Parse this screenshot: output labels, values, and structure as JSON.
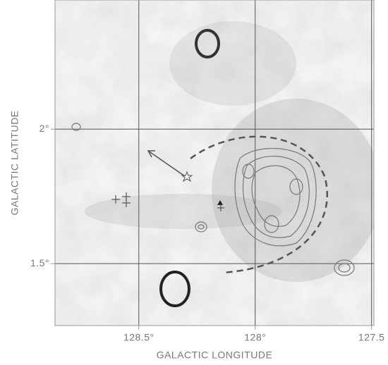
{
  "chart_data": {
    "type": "image",
    "x_label": "GALACTIC LONGITUDE",
    "y_label": "GALACTIC LATITUDE",
    "xlim": [
      128.86,
      127.49
    ],
    "ylim": [
      1.27,
      2.48
    ],
    "xticks": [
      {
        "value": 128.5,
        "label": "128.5°"
      },
      {
        "value": 128,
        "label": "128°"
      },
      {
        "value": 127.5,
        "label": "127.5"
      }
    ],
    "yticks": [
      {
        "value": 2,
        "label": "2°"
      },
      {
        "value": 1.5,
        "label": "1.5°"
      }
    ],
    "grid": true
  }
}
